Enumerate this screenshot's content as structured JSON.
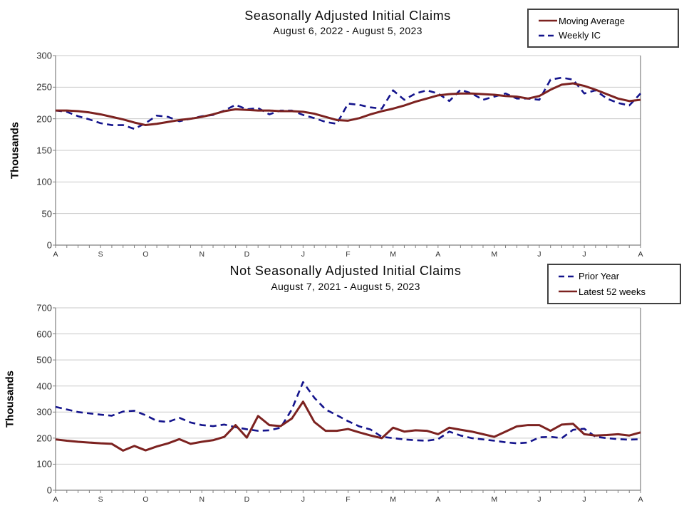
{
  "page": {
    "background": "#ffffff"
  },
  "colors": {
    "solid_line": "#7c2220",
    "dashed_line": "#14148c",
    "gridline": "#c9c9c9",
    "axis": "#808080",
    "text": "#0a0a0a"
  },
  "chart_data": [
    {
      "type": "line",
      "title": "Seasonally Adjusted Initial Claims",
      "subtitle": "August 6, 2022 - August 5, 2023",
      "ylabel": "Thousands",
      "ylim": [
        0,
        300
      ],
      "yticks": [
        0,
        50,
        100,
        150,
        200,
        250,
        300
      ],
      "n_points": 53,
      "x_tick_labels": [
        "A",
        "S",
        "O",
        "N",
        "D",
        "J",
        "F",
        "M",
        "A",
        "M",
        "J",
        "J",
        "A"
      ],
      "x_tick_week_index": [
        0,
        4,
        8,
        13,
        17,
        22,
        26,
        30,
        34,
        39,
        43,
        47,
        52
      ],
      "grid": "horizontal",
      "legend_position": "top-right",
      "series": [
        {
          "name": "Moving Average",
          "style": "solid",
          "color": "#7c2220",
          "values": [
            213,
            213,
            212,
            210,
            207,
            203,
            199,
            194,
            190,
            192,
            195,
            198,
            200,
            203,
            207,
            212,
            215,
            214,
            213,
            213,
            212,
            212,
            211,
            208,
            203,
            198,
            197,
            201,
            207,
            212,
            216,
            221,
            227,
            232,
            237,
            239,
            240,
            240,
            239,
            238,
            236,
            235,
            232,
            236,
            246,
            254,
            256,
            252,
            246,
            239,
            232,
            228,
            230
          ]
        },
        {
          "name": "Weekly IC",
          "style": "dashed",
          "color": "#14148c",
          "values": [
            213,
            211,
            204,
            199,
            193,
            190,
            190,
            184,
            193,
            205,
            203,
            196,
            200,
            204,
            206,
            213,
            222,
            215,
            217,
            207,
            213,
            213,
            206,
            201,
            195,
            192,
            224,
            222,
            218,
            216,
            245,
            230,
            240,
            245,
            240,
            228,
            246,
            240,
            230,
            235,
            240,
            232,
            232,
            230,
            262,
            265,
            262,
            240,
            245,
            232,
            225,
            221,
            240
          ]
        }
      ]
    },
    {
      "type": "line",
      "title": "Not Seasonally Adjusted Initial Claims",
      "subtitle": "August 7, 2021  - August 5, 2023",
      "ylabel": "Thousands",
      "ylim": [
        0,
        700
      ],
      "yticks": [
        0,
        100,
        200,
        300,
        400,
        500,
        600,
        700
      ],
      "n_points": 53,
      "x_tick_labels": [
        "A",
        "S",
        "O",
        "N",
        "D",
        "J",
        "F",
        "M",
        "A",
        "M",
        "J",
        "J",
        "A"
      ],
      "x_tick_week_index": [
        0,
        4,
        8,
        13,
        17,
        22,
        26,
        30,
        34,
        39,
        43,
        47,
        52
      ],
      "grid": "horizontal",
      "legend_position": "top-right",
      "series": [
        {
          "name": "Prior Year",
          "style": "dashed",
          "color": "#14148c",
          "values": [
            320,
            310,
            300,
            295,
            290,
            286,
            302,
            305,
            288,
            266,
            262,
            278,
            260,
            250,
            246,
            252,
            242,
            234,
            228,
            230,
            240,
            310,
            415,
            355,
            310,
            288,
            265,
            245,
            233,
            205,
            200,
            195,
            192,
            190,
            196,
            225,
            210,
            200,
            195,
            190,
            184,
            180,
            183,
            203,
            205,
            200,
            232,
            236,
            205,
            200,
            196,
            194,
            196
          ]
        },
        {
          "name": "Latest 52 weeks",
          "style": "solid",
          "color": "#7c2220",
          "values": [
            195,
            190,
            186,
            183,
            180,
            178,
            152,
            170,
            153,
            168,
            180,
            196,
            178,
            186,
            192,
            205,
            250,
            202,
            285,
            250,
            246,
            275,
            340,
            262,
            228,
            228,
            235,
            222,
            210,
            200,
            240,
            225,
            230,
            228,
            215,
            240,
            232,
            225,
            215,
            205,
            225,
            245,
            250,
            250,
            228,
            252,
            255,
            215,
            210,
            212,
            215,
            210,
            222
          ]
        }
      ]
    }
  ]
}
